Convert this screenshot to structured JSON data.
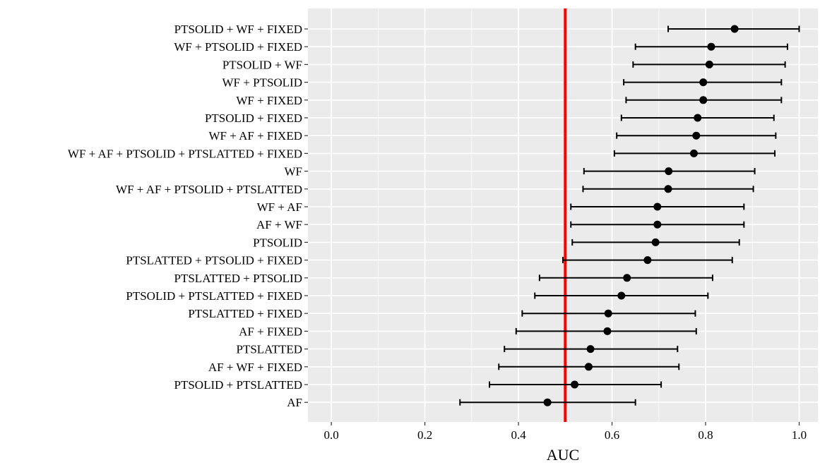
{
  "chart_data": {
    "type": "forest",
    "title": "",
    "xlabel": "AUC",
    "ylabel": "",
    "xlim": [
      -0.05,
      1.04
    ],
    "x_ticks": [
      0.0,
      0.2,
      0.4,
      0.6,
      0.8,
      1.0
    ],
    "x_tick_labels": [
      "0.0",
      "0.2",
      "0.4",
      "0.6",
      "0.8",
      "1.0"
    ],
    "grid": true,
    "reference_line": {
      "x": 0.5,
      "color": "#ff0000"
    },
    "colors": {
      "panel": "#ebebeb",
      "grid_major": "#ffffff",
      "point": "#000000",
      "reference": "#ff0000"
    },
    "models": [
      {
        "label": "PTSOLID + WF + FIXED",
        "auc": 0.862,
        "lower": 0.72,
        "upper": 1.0
      },
      {
        "label": "WF + PTSOLID + FIXED",
        "auc": 0.812,
        "lower": 0.65,
        "upper": 0.975
      },
      {
        "label": "PTSOLID + WF",
        "auc": 0.808,
        "lower": 0.645,
        "upper": 0.97
      },
      {
        "label": "WF + PTSOLID",
        "auc": 0.795,
        "lower": 0.625,
        "upper": 0.962
      },
      {
        "label": "WF + FIXED",
        "auc": 0.795,
        "lower": 0.63,
        "upper": 0.962
      },
      {
        "label": "PTSOLID + FIXED",
        "auc": 0.783,
        "lower": 0.62,
        "upper": 0.946
      },
      {
        "label": "WF + AF + FIXED",
        "auc": 0.78,
        "lower": 0.61,
        "upper": 0.95
      },
      {
        "label": "WF + AF + PTSOLID + PTSLATTED + FIXED",
        "auc": 0.775,
        "lower": 0.605,
        "upper": 0.948
      },
      {
        "label": "WF",
        "auc": 0.721,
        "lower": 0.54,
        "upper": 0.905
      },
      {
        "label": "WF + AF + PTSOLID + PTSLATTED",
        "auc": 0.72,
        "lower": 0.538,
        "upper": 0.902
      },
      {
        "label": "WF + AF",
        "auc": 0.697,
        "lower": 0.512,
        "upper": 0.882
      },
      {
        "label": "AF + WF",
        "auc": 0.697,
        "lower": 0.512,
        "upper": 0.882
      },
      {
        "label": "PTSOLID",
        "auc": 0.693,
        "lower": 0.515,
        "upper": 0.872
      },
      {
        "label": "PTSLATTED + PTSOLID + FIXED",
        "auc": 0.676,
        "lower": 0.495,
        "upper": 0.857
      },
      {
        "label": "PTSLATTED + PTSOLID",
        "auc": 0.632,
        "lower": 0.445,
        "upper": 0.815
      },
      {
        "label": "PTSOLID + PTSLATTED + FIXED",
        "auc": 0.62,
        "lower": 0.435,
        "upper": 0.805
      },
      {
        "label": "PTSLATTED + FIXED",
        "auc": 0.592,
        "lower": 0.408,
        "upper": 0.778
      },
      {
        "label": "AF + FIXED",
        "auc": 0.59,
        "lower": 0.395,
        "upper": 0.78
      },
      {
        "label": "PTSLATTED",
        "auc": 0.554,
        "lower": 0.37,
        "upper": 0.74
      },
      {
        "label": "AF + WF + FIXED",
        "auc": 0.55,
        "lower": 0.358,
        "upper": 0.743
      },
      {
        "label": "PTSOLID + PTSLATTED",
        "auc": 0.52,
        "lower": 0.338,
        "upper": 0.705
      },
      {
        "label": "AF",
        "auc": 0.462,
        "lower": 0.275,
        "upper": 0.65
      }
    ]
  }
}
